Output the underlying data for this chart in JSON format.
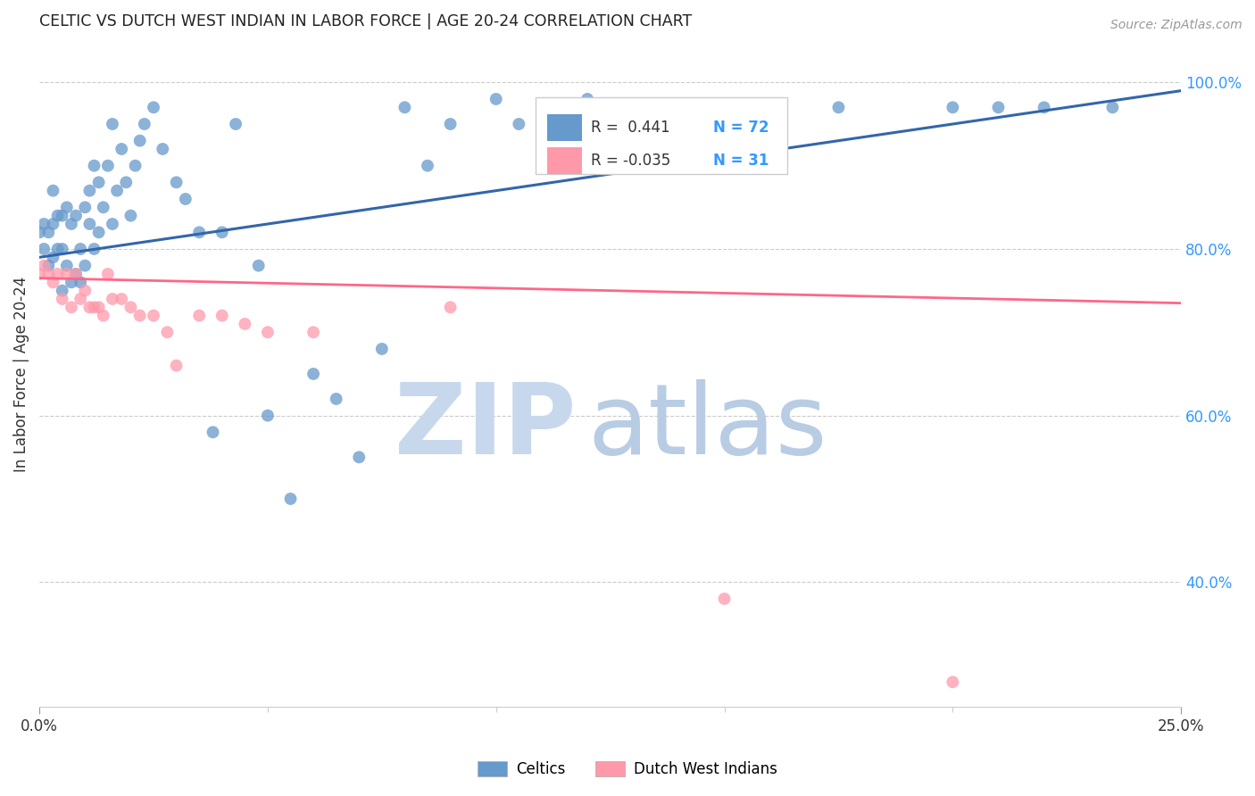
{
  "title": "CELTIC VS DUTCH WEST INDIAN IN LABOR FORCE | AGE 20-24 CORRELATION CHART",
  "source": "Source: ZipAtlas.com",
  "ylabel": "In Labor Force | Age 20-24",
  "right_yticks": [
    "100.0%",
    "80.0%",
    "60.0%",
    "40.0%"
  ],
  "right_ytick_vals": [
    1.0,
    0.8,
    0.6,
    0.4
  ],
  "legend_blue_r": "R =  0.441",
  "legend_blue_n": "N = 72",
  "legend_pink_r": "R = -0.035",
  "legend_pink_n": "N = 31",
  "blue_color": "#6699CC",
  "pink_color": "#FF99AA",
  "blue_line_color": "#3366AA",
  "pink_line_color": "#FF6688",
  "watermark_zip": "ZIP",
  "watermark_atlas": "atlas",
  "watermark_color": "#D0E4F5",
  "blue_scatter_x": [
    0.0,
    0.001,
    0.001,
    0.002,
    0.002,
    0.003,
    0.003,
    0.003,
    0.004,
    0.004,
    0.005,
    0.005,
    0.005,
    0.006,
    0.006,
    0.007,
    0.007,
    0.008,
    0.008,
    0.009,
    0.009,
    0.01,
    0.01,
    0.011,
    0.011,
    0.012,
    0.012,
    0.013,
    0.013,
    0.014,
    0.015,
    0.016,
    0.016,
    0.017,
    0.018,
    0.019,
    0.02,
    0.021,
    0.022,
    0.023,
    0.025,
    0.027,
    0.03,
    0.032,
    0.035,
    0.038,
    0.04,
    0.043,
    0.048,
    0.05,
    0.055,
    0.06,
    0.065,
    0.07,
    0.075,
    0.08,
    0.085,
    0.09,
    0.1,
    0.105,
    0.11,
    0.115,
    0.12,
    0.13,
    0.14,
    0.15,
    0.16,
    0.175,
    0.2,
    0.21,
    0.22,
    0.235
  ],
  "blue_scatter_y": [
    0.82,
    0.8,
    0.83,
    0.78,
    0.82,
    0.79,
    0.83,
    0.87,
    0.8,
    0.84,
    0.75,
    0.8,
    0.84,
    0.78,
    0.85,
    0.76,
    0.83,
    0.77,
    0.84,
    0.76,
    0.8,
    0.78,
    0.85,
    0.83,
    0.87,
    0.8,
    0.9,
    0.82,
    0.88,
    0.85,
    0.9,
    0.83,
    0.95,
    0.87,
    0.92,
    0.88,
    0.84,
    0.9,
    0.93,
    0.95,
    0.97,
    0.92,
    0.88,
    0.86,
    0.82,
    0.58,
    0.82,
    0.95,
    0.78,
    0.6,
    0.5,
    0.65,
    0.62,
    0.55,
    0.68,
    0.97,
    0.9,
    0.95,
    0.98,
    0.95,
    0.97,
    0.95,
    0.98,
    0.97,
    0.97,
    0.97,
    0.97,
    0.97,
    0.97,
    0.97,
    0.97,
    0.97
  ],
  "pink_scatter_x": [
    0.0,
    0.001,
    0.002,
    0.003,
    0.004,
    0.005,
    0.006,
    0.007,
    0.008,
    0.009,
    0.01,
    0.011,
    0.012,
    0.013,
    0.014,
    0.015,
    0.016,
    0.018,
    0.02,
    0.022,
    0.025,
    0.028,
    0.03,
    0.035,
    0.04,
    0.045,
    0.05,
    0.06,
    0.09,
    0.15,
    0.2
  ],
  "pink_scatter_y": [
    0.77,
    0.78,
    0.77,
    0.76,
    0.77,
    0.74,
    0.77,
    0.73,
    0.77,
    0.74,
    0.75,
    0.73,
    0.73,
    0.73,
    0.72,
    0.77,
    0.74,
    0.74,
    0.73,
    0.72,
    0.72,
    0.7,
    0.66,
    0.72,
    0.72,
    0.71,
    0.7,
    0.7,
    0.73,
    0.38,
    0.28
  ],
  "xmin": 0.0,
  "xmax": 0.25,
  "ymin": 0.25,
  "ymax": 1.05,
  "blue_trendline_x": [
    0.0,
    0.25
  ],
  "blue_trendline_y": [
    0.79,
    0.99
  ],
  "pink_trendline_x": [
    0.0,
    0.25
  ],
  "pink_trendline_y": [
    0.765,
    0.735
  ],
  "xtick_positions": [
    0.0,
    0.25
  ],
  "xtick_labels": [
    "0.0%",
    "25.0%"
  ]
}
